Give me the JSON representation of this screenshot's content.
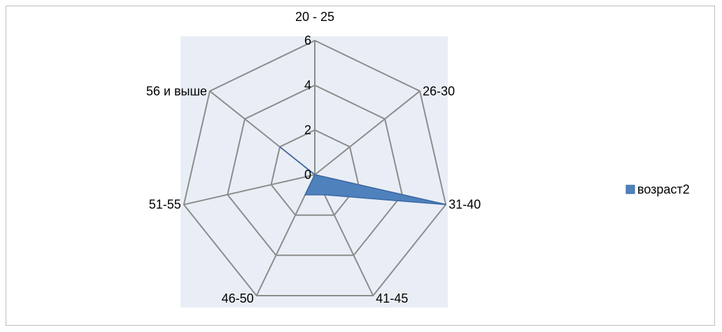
{
  "chart_data": {
    "type": "radar",
    "categories": [
      "20 - 25",
      "26-30",
      "31-40",
      "41-45",
      "46-50",
      "51-55",
      "56 и выше"
    ],
    "series": [
      {
        "name": "возраст2",
        "values": [
          0,
          0,
          6,
          1,
          1,
          0,
          2
        ],
        "color": "#4f81bd",
        "stroke": "#3a6aa8"
      }
    ],
    "r_ticks": [
      0,
      2,
      4,
      6
    ],
    "rlim": [
      0,
      6
    ],
    "grid": true,
    "grid_color": "#8c8c8c",
    "plot_background": "#e9eef6",
    "legend": "right"
  }
}
